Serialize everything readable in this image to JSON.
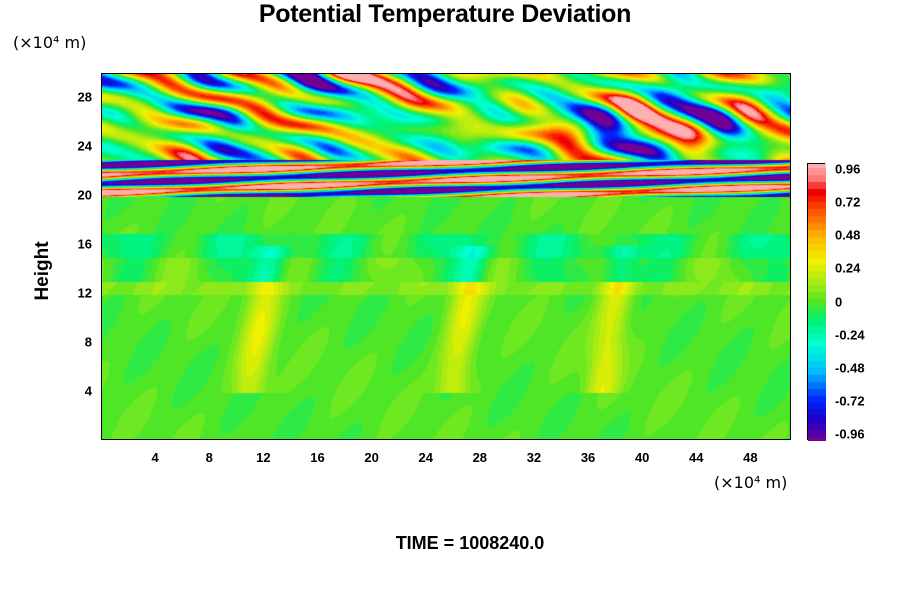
{
  "chart_data": {
    "type": "heatmap",
    "title": "Potential Temperature Deviation",
    "ylabel": "Height",
    "xlabel": "",
    "x_unit": "(×10⁴ m)",
    "y_unit": "(×10⁴ m)",
    "xlim": [
      0,
      51
    ],
    "ylim": [
      0,
      30
    ],
    "x_ticks": [
      "4",
      "8",
      "12",
      "16",
      "20",
      "24",
      "28",
      "32",
      "36",
      "40",
      "44",
      "48"
    ],
    "x_tick_values": [
      4,
      8,
      12,
      16,
      20,
      24,
      28,
      32,
      36,
      40,
      44,
      48
    ],
    "y_ticks": [
      "4",
      "8",
      "12",
      "16",
      "20",
      "24",
      "28"
    ],
    "y_tick_values": [
      4,
      8,
      12,
      16,
      20,
      24,
      28
    ],
    "colorbar": {
      "range": [
        -1.0,
        1.0
      ],
      "labels": [
        "0.96",
        "0.72",
        "0.48",
        "0.24",
        "0",
        "-0.24",
        "-0.48",
        "-0.72",
        "-0.96"
      ],
      "label_values": [
        0.96,
        0.72,
        0.48,
        0.24,
        0,
        -0.24,
        -0.48,
        -0.72,
        -0.96
      ]
    },
    "description_regions": {
      "background_value": 0.0,
      "band_layers_height_range": [
        20,
        23
      ],
      "turbulent_layer_height_range": [
        23,
        30
      ],
      "plume_features_x": [
        12,
        27,
        38
      ]
    },
    "annotation": "TIME = 1008240.0",
    "grid": false,
    "legend": "colorbar-right"
  }
}
